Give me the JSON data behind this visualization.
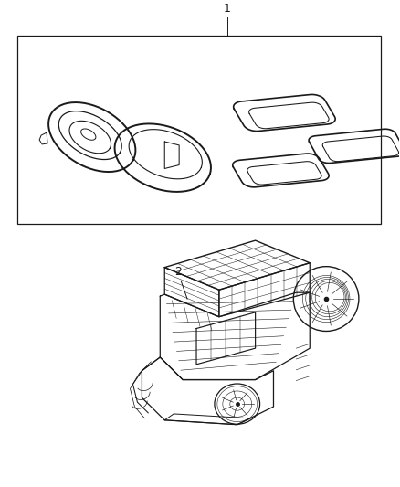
{
  "background_color": "#ffffff",
  "line_color": "#1a1a1a",
  "fig_width": 4.38,
  "fig_height": 5.33,
  "dpi": 100,
  "label1": "1",
  "label2": "2"
}
